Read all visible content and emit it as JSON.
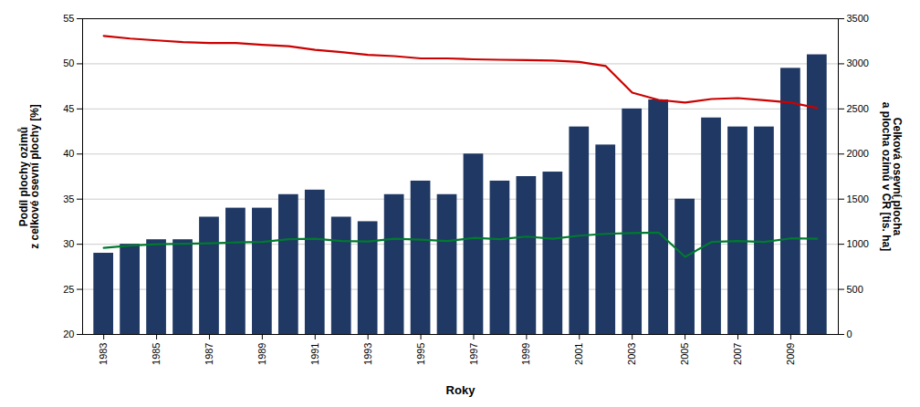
{
  "chart_data": {
    "type": "bar",
    "x": [
      1983,
      1984,
      1985,
      1986,
      1987,
      1988,
      1989,
      1990,
      1991,
      1992,
      1993,
      1994,
      1995,
      1996,
      1997,
      1998,
      1999,
      2000,
      2001,
      2002,
      2003,
      2004,
      2005,
      2006,
      2007,
      2008,
      2009,
      2010
    ],
    "series": [
      {
        "type": "bar",
        "color": "#1F3864",
        "values": [
          29.0,
          30.0,
          30.5,
          30.5,
          33.0,
          34.0,
          34.0,
          35.5,
          36.0,
          33.0,
          32.5,
          35.5,
          37.0,
          35.5,
          40.0,
          37.0,
          37.5,
          38.0,
          43.0,
          41.0,
          45.0,
          46.0,
          35.0,
          44.0,
          43.0,
          43.0,
          49.5,
          51.0
        ]
      },
      {
        "type": "line",
        "axis": "y2",
        "color": "#CC0000",
        "values": [
          3310,
          3280,
          3260,
          3240,
          3230,
          3230,
          3210,
          3195,
          3155,
          3130,
          3100,
          3085,
          3060,
          3060,
          3050,
          3045,
          3040,
          3035,
          3020,
          2975,
          2680,
          2600,
          2570,
          2610,
          2620,
          2595,
          2570,
          2510
        ]
      },
      {
        "type": "line",
        "axis": "y2",
        "color": "#007A2F",
        "values": [
          960,
          985,
          1000,
          1005,
          1010,
          1020,
          1025,
          1055,
          1060,
          1035,
          1030,
          1060,
          1050,
          1035,
          1070,
          1055,
          1085,
          1060,
          1095,
          1115,
          1125,
          1130,
          860,
          1025,
          1035,
          1025,
          1065,
          1060
        ]
      }
    ],
    "xlabel": "Roky",
    "ylabel": "Podíl plochy ozimů\nz celkové osevní plochy [%]",
    "y2label": "Celková osevní plocha\na plocha ozimů v ČR [tis. ha]",
    "xlim": [
      1982.2,
      2010.8
    ],
    "xticks": [
      1983,
      1985,
      1987,
      1989,
      1991,
      1993,
      1995,
      1997,
      1999,
      2001,
      2003,
      2005,
      2007,
      2009
    ],
    "ylim": [
      20,
      55
    ],
    "yticks": [
      20,
      25,
      30,
      35,
      40,
      45,
      50,
      55
    ],
    "y2lim": [
      0,
      3500
    ],
    "y2ticks": [
      0,
      500,
      1000,
      1500,
      2000,
      2500,
      3000,
      3500
    ],
    "grid": "y"
  }
}
